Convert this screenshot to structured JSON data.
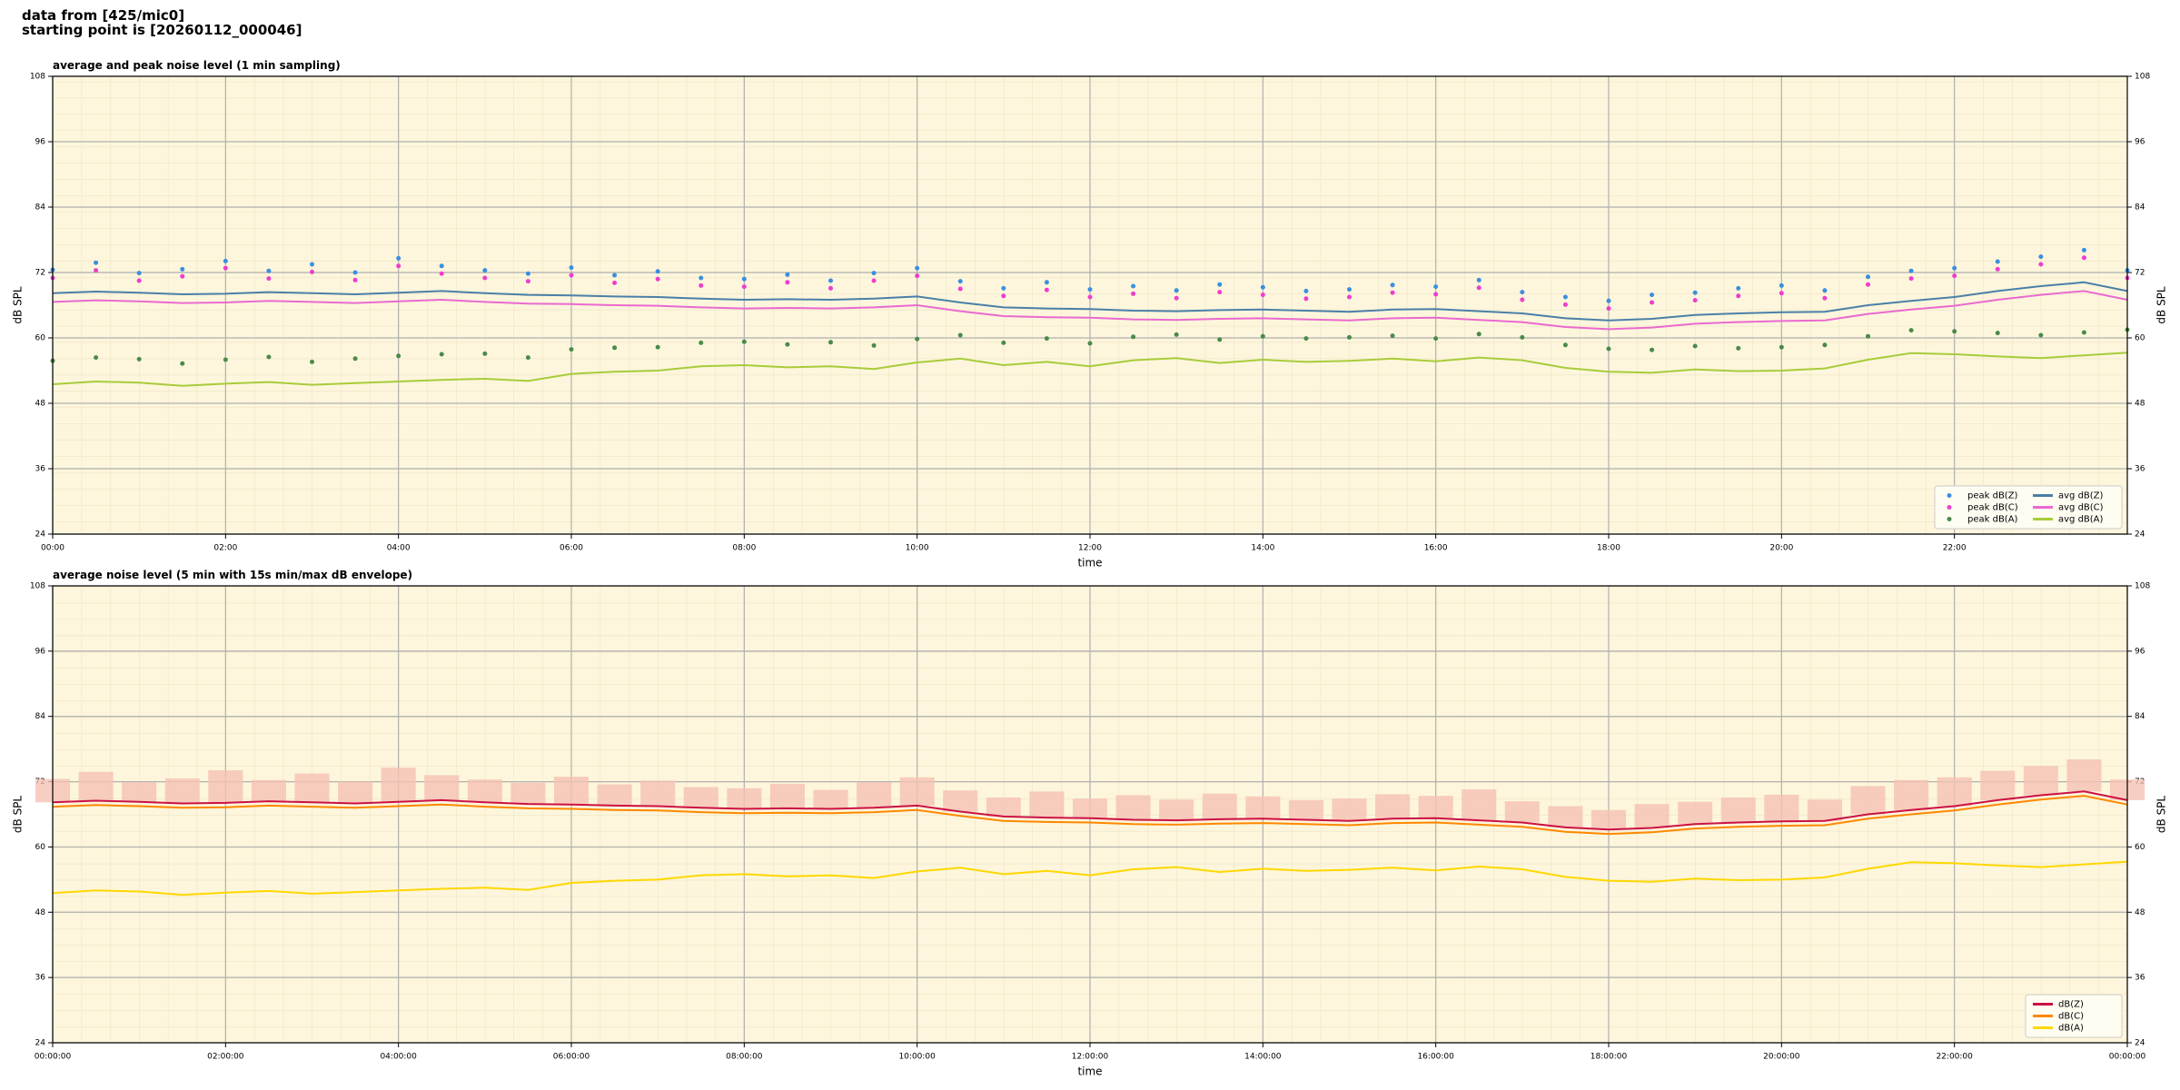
{
  "header": {
    "line1": "data from [425/mic0]",
    "line2": "starting point is [20260112_000046]"
  },
  "chart_data": [
    {
      "type": "line",
      "title": "average and peak noise level (1 min sampling)",
      "xlabel": "time",
      "ylabel": "dB SPL",
      "x": [
        0,
        0.5,
        1,
        1.5,
        2,
        2.5,
        3,
        3.5,
        4,
        4.5,
        5,
        5.5,
        6,
        6.5,
        7,
        7.5,
        8,
        8.5,
        9,
        9.5,
        10,
        10.5,
        11,
        11.5,
        12,
        12.5,
        13,
        13.5,
        14,
        14.5,
        15,
        15.5,
        16,
        16.5,
        17,
        17.5,
        18,
        18.5,
        19,
        19.5,
        20,
        20.5,
        21,
        21.5,
        22,
        22.5,
        23,
        23.5,
        24
      ],
      "xlim": [
        0,
        24
      ],
      "xticks": [
        {
          "value": 0,
          "label": "00:00"
        },
        {
          "value": 2,
          "label": "02:00"
        },
        {
          "value": 4,
          "label": "04:00"
        },
        {
          "value": 6,
          "label": "06:00"
        },
        {
          "value": 8,
          "label": "08:00"
        },
        {
          "value": 10,
          "label": "10:00"
        },
        {
          "value": 12,
          "label": "12:00"
        },
        {
          "value": 14,
          "label": "14:00"
        },
        {
          "value": 16,
          "label": "16:00"
        },
        {
          "value": 18,
          "label": "18:00"
        },
        {
          "value": 20,
          "label": "20:00"
        },
        {
          "value": 22,
          "label": "22:00"
        }
      ],
      "ylim": [
        24,
        108
      ],
      "yticks": [
        24,
        36,
        48,
        60,
        72,
        84,
        96,
        108
      ],
      "grid": true,
      "legend": "lower right",
      "series": [
        {
          "name": "peak dB(Z)",
          "style": "points",
          "color": "#3a8fe0",
          "values": [
            72.5,
            73.8,
            71.9,
            72.6,
            74.1,
            72.3,
            73.5,
            72.0,
            74.6,
            73.2,
            72.4,
            71.8,
            72.9,
            71.5,
            72.2,
            71.0,
            70.8,
            71.6,
            70.5,
            71.9,
            72.8,
            70.4,
            69.1,
            70.2,
            68.9,
            69.5,
            68.7,
            69.8,
            69.3,
            68.6,
            68.9,
            69.7,
            69.4,
            70.6,
            68.4,
            67.5,
            66.8,
            67.9,
            68.3,
            69.1,
            69.6,
            68.7,
            71.2,
            72.3,
            72.8,
            74.0,
            74.9,
            76.1,
            72.4
          ]
        },
        {
          "name": "peak dB(C)",
          "style": "points",
          "color": "#f03ccf",
          "values": [
            71.0,
            72.4,
            70.5,
            71.3,
            72.8,
            70.9,
            72.1,
            70.6,
            73.2,
            71.8,
            71.0,
            70.4,
            71.5,
            70.1,
            70.8,
            69.6,
            69.4,
            70.2,
            69.1,
            70.5,
            71.4,
            69.0,
            67.7,
            68.8,
            67.5,
            68.1,
            67.3,
            68.4,
            67.9,
            67.2,
            67.5,
            68.3,
            68.0,
            69.2,
            67.0,
            66.1,
            65.4,
            66.5,
            66.9,
            67.7,
            68.2,
            67.3,
            69.8,
            70.9,
            71.4,
            72.6,
            73.5,
            74.7,
            71.0
          ]
        },
        {
          "name": "peak dB(A)",
          "style": "points",
          "color": "#4a8a4a",
          "values": [
            55.8,
            56.4,
            56.1,
            55.3,
            56.0,
            56.5,
            55.6,
            56.2,
            56.7,
            57.0,
            57.1,
            56.4,
            57.9,
            58.2,
            58.3,
            59.1,
            59.3,
            58.8,
            59.2,
            58.6,
            59.8,
            60.5,
            59.1,
            59.9,
            59.0,
            60.2,
            60.6,
            59.7,
            60.3,
            59.9,
            60.1,
            60.4,
            59.9,
            60.7,
            60.1,
            58.7,
            58.0,
            57.8,
            58.5,
            58.1,
            58.3,
            58.7,
            60.3,
            61.4,
            61.2,
            60.9,
            60.5,
            61.0,
            61.5
          ]
        },
        {
          "name": "avg dB(Z)",
          "style": "line",
          "color": "#4a7fa8",
          "values": [
            68.2,
            68.5,
            68.3,
            68.0,
            68.1,
            68.4,
            68.2,
            68.0,
            68.3,
            68.6,
            68.2,
            67.9,
            67.8,
            67.6,
            67.5,
            67.2,
            67.0,
            67.1,
            67.0,
            67.2,
            67.6,
            66.5,
            65.6,
            65.4,
            65.3,
            65.0,
            64.9,
            65.1,
            65.2,
            65.0,
            64.8,
            65.2,
            65.3,
            64.9,
            64.5,
            63.6,
            63.2,
            63.5,
            64.2,
            64.5,
            64.7,
            64.8,
            66.0,
            66.8,
            67.5,
            68.6,
            69.5,
            70.2,
            68.6
          ]
        },
        {
          "name": "avg dB(C)",
          "style": "line",
          "color": "#ea6ad0",
          "values": [
            66.6,
            66.9,
            66.7,
            66.4,
            66.5,
            66.8,
            66.6,
            66.4,
            66.7,
            67.0,
            66.6,
            66.3,
            66.2,
            66.0,
            65.9,
            65.6,
            65.4,
            65.5,
            65.4,
            65.6,
            66.0,
            64.9,
            64.0,
            63.8,
            63.7,
            63.4,
            63.3,
            63.5,
            63.6,
            63.4,
            63.2,
            63.6,
            63.7,
            63.3,
            62.9,
            62.0,
            61.6,
            61.9,
            62.6,
            62.9,
            63.1,
            63.2,
            64.4,
            65.2,
            65.9,
            67.0,
            67.9,
            68.6,
            67.0
          ]
        },
        {
          "name": "avg dB(A)",
          "style": "line",
          "color": "#a8cc3a",
          "values": [
            51.5,
            52.0,
            51.8,
            51.2,
            51.6,
            51.9,
            51.4,
            51.7,
            52.0,
            52.3,
            52.5,
            52.1,
            53.4,
            53.8,
            54.0,
            54.8,
            55.0,
            54.6,
            54.8,
            54.3,
            55.5,
            56.2,
            55.0,
            55.6,
            54.8,
            55.9,
            56.3,
            55.4,
            56.0,
            55.6,
            55.8,
            56.2,
            55.7,
            56.4,
            55.9,
            54.5,
            53.8,
            53.6,
            54.2,
            53.9,
            54.0,
            54.4,
            56.0,
            57.2,
            57.0,
            56.6,
            56.3,
            56.8,
            57.3
          ]
        }
      ]
    },
    {
      "type": "line",
      "title": "average noise level (5 min with 15s min/max dB envelope)",
      "xlabel": "time",
      "ylabel": "dB SPL",
      "x": [
        0,
        0.5,
        1,
        1.5,
        2,
        2.5,
        3,
        3.5,
        4,
        4.5,
        5,
        5.5,
        6,
        6.5,
        7,
        7.5,
        8,
        8.5,
        9,
        9.5,
        10,
        10.5,
        11,
        11.5,
        12,
        12.5,
        13,
        13.5,
        14,
        14.5,
        15,
        15.5,
        16,
        16.5,
        17,
        17.5,
        18,
        18.5,
        19,
        19.5,
        20,
        20.5,
        21,
        21.5,
        22,
        22.5,
        23,
        23.5,
        24
      ],
      "xlim": [
        0,
        24
      ],
      "xticks": [
        {
          "value": 0,
          "label": "00:00:00"
        },
        {
          "value": 2,
          "label": "02:00:00"
        },
        {
          "value": 4,
          "label": "04:00:00"
        },
        {
          "value": 6,
          "label": "06:00:00"
        },
        {
          "value": 8,
          "label": "08:00:00"
        },
        {
          "value": 10,
          "label": "10:00:00"
        },
        {
          "value": 12,
          "label": "12:00:00"
        },
        {
          "value": 14,
          "label": "14:00:00"
        },
        {
          "value": 16,
          "label": "16:00:00"
        },
        {
          "value": 18,
          "label": "18:00:00"
        },
        {
          "value": 20,
          "label": "20:00:00"
        },
        {
          "value": 22,
          "label": "22:00:00"
        },
        {
          "value": 24,
          "label": "00:00:00"
        }
      ],
      "ylim": [
        24,
        108
      ],
      "yticks": [
        24,
        36,
        48,
        60,
        72,
        84,
        96,
        108
      ],
      "grid": true,
      "legend": "lower right",
      "envelope_color": "#f5c2b4",
      "series": [
        {
          "name": "dB(Z)",
          "style": "line",
          "color": "#cc1144",
          "values": [
            68.2,
            68.5,
            68.3,
            68.0,
            68.1,
            68.4,
            68.2,
            68.0,
            68.3,
            68.6,
            68.2,
            67.9,
            67.8,
            67.6,
            67.5,
            67.2,
            67.0,
            67.1,
            67.0,
            67.2,
            67.6,
            66.5,
            65.6,
            65.4,
            65.3,
            65.0,
            64.9,
            65.1,
            65.2,
            65.0,
            64.8,
            65.2,
            65.3,
            64.9,
            64.5,
            63.6,
            63.2,
            63.5,
            64.2,
            64.5,
            64.7,
            64.8,
            66.0,
            66.8,
            67.5,
            68.6,
            69.5,
            70.2,
            68.6
          ],
          "max": [
            72.5,
            73.8,
            71.9,
            72.6,
            74.1,
            72.3,
            73.5,
            72.0,
            74.6,
            73.2,
            72.4,
            71.8,
            72.9,
            71.5,
            72.2,
            71.0,
            70.8,
            71.6,
            70.5,
            71.9,
            72.8,
            70.4,
            69.1,
            70.2,
            68.9,
            69.5,
            68.7,
            69.8,
            69.3,
            68.6,
            68.9,
            69.7,
            69.4,
            70.6,
            68.4,
            67.5,
            66.8,
            67.9,
            68.3,
            69.1,
            69.6,
            68.7,
            71.2,
            72.3,
            72.8,
            74.0,
            74.9,
            76.1,
            72.4
          ]
        },
        {
          "name": "dB(C)",
          "style": "line",
          "color": "#ff8800",
          "values": [
            67.4,
            67.7,
            67.5,
            67.2,
            67.3,
            67.6,
            67.4,
            67.2,
            67.5,
            67.8,
            67.4,
            67.1,
            67.0,
            66.8,
            66.7,
            66.4,
            66.2,
            66.3,
            66.2,
            66.4,
            66.8,
            65.7,
            64.8,
            64.6,
            64.5,
            64.2,
            64.1,
            64.3,
            64.4,
            64.2,
            64.0,
            64.4,
            64.5,
            64.1,
            63.7,
            62.8,
            62.4,
            62.7,
            63.4,
            63.7,
            63.9,
            64.0,
            65.2,
            66.0,
            66.7,
            67.8,
            68.7,
            69.4,
            67.8
          ]
        },
        {
          "name": "dB(A)",
          "style": "line",
          "color": "#ffd700",
          "values": [
            51.5,
            52.0,
            51.8,
            51.2,
            51.6,
            51.9,
            51.4,
            51.7,
            52.0,
            52.3,
            52.5,
            52.1,
            53.4,
            53.8,
            54.0,
            54.8,
            55.0,
            54.6,
            54.8,
            54.3,
            55.5,
            56.2,
            55.0,
            55.6,
            54.8,
            55.9,
            56.3,
            55.4,
            56.0,
            55.6,
            55.8,
            56.2,
            55.7,
            56.4,
            55.9,
            54.5,
            53.8,
            53.6,
            54.2,
            53.9,
            54.0,
            54.4,
            56.0,
            57.2,
            57.0,
            56.6,
            56.3,
            56.8,
            57.3
          ]
        }
      ]
    }
  ]
}
